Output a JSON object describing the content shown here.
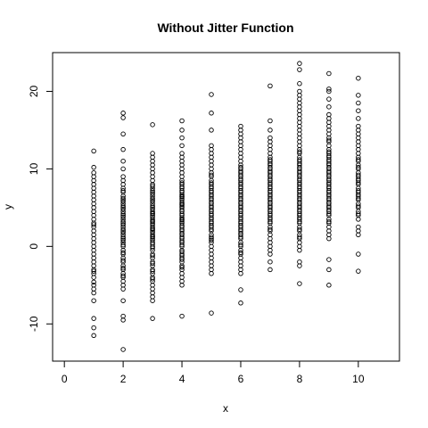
{
  "chart_data": {
    "type": "scatter",
    "title": "Without Jitter Function",
    "xlabel": "x",
    "ylabel": "y",
    "xlim": [
      -0.4,
      11.4
    ],
    "ylim": [
      -14.8,
      25
    ],
    "x_ticks": [
      0,
      2,
      4,
      6,
      8,
      10
    ],
    "y_ticks": [
      -10,
      0,
      10,
      20
    ],
    "x_tick_labels": [
      "0",
      "2",
      "4",
      "6",
      "8",
      "10"
    ],
    "y_tick_labels": [
      "-10",
      "0",
      "10",
      "20"
    ],
    "grid": false,
    "legend": "none",
    "marker": "open-circle",
    "series": [
      {
        "x": [
          1,
          1,
          1,
          1,
          1,
          1,
          1,
          1,
          1,
          1,
          1,
          1,
          1,
          1,
          1,
          1,
          1,
          1,
          1,
          1,
          1,
          1,
          1,
          1,
          1,
          1,
          1,
          1,
          1,
          1,
          1,
          1,
          1,
          1,
          1,
          1,
          1,
          1,
          1,
          1
        ],
        "y": [
          -11.5,
          -10.5,
          -9.3,
          -7,
          -6,
          -5.5,
          -5,
          -4.6,
          -4,
          -3.5,
          -3,
          -2.5,
          -2,
          -1.5,
          -1,
          -0.5,
          0,
          0.5,
          1,
          1.5,
          2,
          2.5,
          3,
          3.5,
          4,
          4.5,
          5,
          5.5,
          6,
          6.5,
          7,
          7.5,
          8,
          8.5,
          9,
          9.5,
          10.2,
          12.3,
          -3.2,
          2.8
        ]
      },
      {
        "x": [
          2,
          2,
          2,
          2,
          2,
          2,
          2,
          2,
          2,
          2,
          2,
          2,
          2,
          2,
          2,
          2,
          2,
          2,
          2,
          2,
          2,
          2,
          2,
          2,
          2,
          2,
          2,
          2,
          2,
          2,
          2,
          2,
          2,
          2,
          2,
          2,
          2,
          2,
          2,
          2,
          2,
          2,
          2,
          2,
          2,
          2,
          2,
          2,
          2,
          2,
          2,
          2,
          2,
          2,
          2,
          2,
          2,
          2
        ],
        "y": [
          -13.3,
          -9.5,
          -9,
          -7,
          -5.5,
          -5,
          -4.5,
          -4,
          -3.5,
          -3,
          -2.5,
          -2,
          -1.5,
          -1,
          -0.5,
          0,
          0.5,
          1,
          1.5,
          2,
          2.5,
          3,
          3.5,
          4,
          4.5,
          5,
          5.5,
          6,
          6.5,
          7,
          7.5,
          8,
          8.5,
          9,
          10,
          11,
          12.5,
          14.5,
          16.6,
          17.2,
          -0.8,
          0.2,
          1.2,
          2.2,
          3.2,
          4.2,
          5.2,
          6.2,
          7.2,
          -1.8,
          -2.8,
          -3.8,
          0.8,
          1.8,
          2.8,
          3.8,
          4.8,
          5.8
        ]
      },
      {
        "x": [
          3,
          3,
          3,
          3,
          3,
          3,
          3,
          3,
          3,
          3,
          3,
          3,
          3,
          3,
          3,
          3,
          3,
          3,
          3,
          3,
          3,
          3,
          3,
          3,
          3,
          3,
          3,
          3,
          3,
          3,
          3,
          3,
          3,
          3,
          3,
          3,
          3,
          3,
          3,
          3,
          3,
          3,
          3,
          3,
          3,
          3,
          3,
          3,
          3,
          3,
          3,
          3,
          3,
          3,
          3,
          3,
          3,
          3,
          3,
          3,
          3,
          3,
          3,
          3,
          3,
          3
        ],
        "y": [
          -9.3,
          -7,
          -6.5,
          -6,
          -5.5,
          -5,
          -4.5,
          -4,
          -3.5,
          -3,
          -2.5,
          -2,
          -1.5,
          -1,
          -0.5,
          0,
          0.5,
          1,
          1.5,
          2,
          2.5,
          3,
          3.5,
          4,
          4.5,
          5,
          5.5,
          6,
          6.5,
          7,
          7.5,
          8,
          8.5,
          9,
          9.5,
          10,
          10.5,
          11,
          11.5,
          12,
          15.7,
          -0.2,
          0.8,
          1.8,
          2.8,
          3.8,
          4.8,
          5.8,
          6.8,
          7.8,
          -1.2,
          -2.2,
          -3.2,
          -4.2,
          1.2,
          2.2,
          3.2,
          4.2,
          5.2,
          6.2,
          7.2,
          0.3,
          1.3,
          2.3,
          3.3,
          4.3
        ]
      },
      {
        "x": [
          4,
          4,
          4,
          4,
          4,
          4,
          4,
          4,
          4,
          4,
          4,
          4,
          4,
          4,
          4,
          4,
          4,
          4,
          4,
          4,
          4,
          4,
          4,
          4,
          4,
          4,
          4,
          4,
          4,
          4,
          4,
          4,
          4,
          4,
          4,
          4,
          4,
          4,
          4,
          4,
          4,
          4,
          4,
          4,
          4,
          4,
          4,
          4,
          4,
          4,
          4,
          4,
          4,
          4,
          4,
          4,
          4,
          4,
          4,
          4,
          4,
          4,
          4,
          4
        ],
        "y": [
          -9,
          -5,
          -4.5,
          -4,
          -3.5,
          -3,
          -2.5,
          -2,
          -1.5,
          -1,
          -0.5,
          0,
          0.5,
          1,
          1.5,
          2,
          2.5,
          3,
          3.5,
          4,
          4.5,
          5,
          5.5,
          6,
          6.5,
          7,
          7.5,
          8,
          8.5,
          9,
          9.5,
          10,
          10.5,
          11,
          11.5,
          12,
          13,
          14,
          15,
          16.2,
          0.2,
          1.2,
          2.2,
          3.2,
          4.2,
          5.2,
          6.2,
          7.2,
          8.2,
          -0.7,
          -1.7,
          -2.7,
          0.7,
          1.7,
          2.7,
          3.7,
          4.7,
          5.7,
          6.7,
          7.7,
          -1.2,
          3.4,
          5.4,
          6.4
        ]
      },
      {
        "x": [
          5,
          5,
          5,
          5,
          5,
          5,
          5,
          5,
          5,
          5,
          5,
          5,
          5,
          5,
          5,
          5,
          5,
          5,
          5,
          5,
          5,
          5,
          5,
          5,
          5,
          5,
          5,
          5,
          5,
          5,
          5,
          5,
          5,
          5,
          5,
          5,
          5,
          5,
          5,
          5,
          5,
          5,
          5,
          5,
          5,
          5,
          5,
          5,
          5,
          5,
          5,
          5,
          5,
          5
        ],
        "y": [
          -8.6,
          -3.5,
          -3,
          -2.5,
          -1.5,
          -0.5,
          0,
          0.5,
          1,
          1.5,
          2,
          2.5,
          3,
          3.5,
          4,
          4.5,
          5,
          5.5,
          6,
          6.5,
          7,
          7.5,
          8,
          8.5,
          9,
          9.5,
          10,
          10.5,
          11,
          11.5,
          12,
          12.5,
          13,
          15,
          17.2,
          19.6,
          1.2,
          2.2,
          3.2,
          4.2,
          5.2,
          6.2,
          7.2,
          8.2,
          9.2,
          2.7,
          3.7,
          4.7,
          5.7,
          6.7,
          7.7,
          -2,
          -1,
          0.8
        ]
      },
      {
        "x": [
          6,
          6,
          6,
          6,
          6,
          6,
          6,
          6,
          6,
          6,
          6,
          6,
          6,
          6,
          6,
          6,
          6,
          6,
          6,
          6,
          6,
          6,
          6,
          6,
          6,
          6,
          6,
          6,
          6,
          6,
          6,
          6,
          6,
          6,
          6,
          6,
          6,
          6,
          6,
          6,
          6,
          6,
          6,
          6,
          6,
          6,
          6,
          6,
          6,
          6,
          6,
          6,
          6,
          6,
          6,
          6,
          6,
          6,
          6,
          6,
          6,
          6
        ],
        "y": [
          -7.3,
          -5.6,
          -3.5,
          -3,
          -2.5,
          -2,
          -1.5,
          -1,
          -0.5,
          0,
          0.5,
          1,
          1.5,
          2,
          2.5,
          3,
          3.5,
          4,
          4.5,
          5,
          5.5,
          6,
          6.5,
          7,
          7.5,
          8,
          8.5,
          9,
          9.5,
          10,
          10.5,
          11,
          11.5,
          12,
          12.5,
          13,
          13.5,
          14,
          14.5,
          15,
          15.5,
          1.2,
          2.2,
          3.2,
          4.2,
          5.2,
          6.2,
          7.2,
          8.2,
          9.2,
          10.2,
          -0.8,
          0.2,
          1.7,
          2.7,
          3.7,
          4.7,
          5.7,
          6.7,
          7.7,
          8.7,
          9.7
        ]
      },
      {
        "x": [
          7,
          7,
          7,
          7,
          7,
          7,
          7,
          7,
          7,
          7,
          7,
          7,
          7,
          7,
          7,
          7,
          7,
          7,
          7,
          7,
          7,
          7,
          7,
          7,
          7,
          7,
          7,
          7,
          7,
          7,
          7,
          7,
          7,
          7,
          7,
          7,
          7,
          7,
          7,
          7,
          7,
          7,
          7,
          7,
          7,
          7,
          7,
          7,
          7,
          7,
          7,
          7,
          7,
          7
        ],
        "y": [
          -3,
          -2,
          -1,
          -0.5,
          0,
          0.5,
          1,
          1.5,
          2,
          2.5,
          3,
          3.5,
          4,
          4.5,
          5,
          5.5,
          6,
          6.5,
          7,
          7.5,
          8,
          8.5,
          9,
          9.5,
          10,
          10.5,
          11,
          11.5,
          12,
          12.5,
          13,
          13.5,
          14,
          15,
          16.2,
          20.7,
          2.2,
          3.2,
          4.2,
          5.2,
          6.2,
          7.2,
          8.2,
          9.2,
          10.2,
          11.2,
          3.7,
          4.7,
          5.7,
          6.7,
          7.7,
          8.7,
          9.7,
          10.7
        ]
      },
      {
        "x": [
          8,
          8,
          8,
          8,
          8,
          8,
          8,
          8,
          8,
          8,
          8,
          8,
          8,
          8,
          8,
          8,
          8,
          8,
          8,
          8,
          8,
          8,
          8,
          8,
          8,
          8,
          8,
          8,
          8,
          8,
          8,
          8,
          8,
          8,
          8,
          8,
          8,
          8,
          8,
          8,
          8,
          8,
          8,
          8,
          8,
          8,
          8,
          8,
          8,
          8,
          8,
          8,
          8,
          8,
          8,
          8,
          8,
          8,
          8,
          8,
          8,
          8,
          8,
          8,
          8,
          8,
          8,
          8
        ],
        "y": [
          -4.8,
          -2.5,
          -2,
          -0.5,
          0,
          0.5,
          1,
          1.5,
          2,
          2.5,
          3,
          3.5,
          4,
          4.5,
          5,
          5.5,
          6,
          6.5,
          7,
          7.5,
          8,
          8.5,
          9,
          9.5,
          10,
          10.5,
          11,
          11.5,
          12,
          12.5,
          13,
          13.5,
          14,
          14.5,
          15,
          15.5,
          16,
          16.5,
          17,
          17.5,
          18,
          18.5,
          19,
          19.5,
          20,
          21,
          22.8,
          23.6,
          1.2,
          2.2,
          3.2,
          4.2,
          5.2,
          6.2,
          7.2,
          8.2,
          9.2,
          10.2,
          11.2,
          12.2,
          3.7,
          4.7,
          5.7,
          6.7,
          7.7,
          8.7,
          9.7,
          10.7
        ]
      },
      {
        "x": [
          9,
          9,
          9,
          9,
          9,
          9,
          9,
          9,
          9,
          9,
          9,
          9,
          9,
          9,
          9,
          9,
          9,
          9,
          9,
          9,
          9,
          9,
          9,
          9,
          9,
          9,
          9,
          9,
          9,
          9,
          9,
          9,
          9,
          9,
          9,
          9,
          9,
          9,
          9,
          9,
          9,
          9,
          9,
          9,
          9,
          9,
          9,
          9,
          9,
          9,
          9,
          9,
          9,
          9,
          9,
          9,
          9,
          9,
          9,
          9
        ],
        "y": [
          -5,
          -3,
          -1.7,
          1,
          1.5,
          2,
          2.5,
          3,
          3.5,
          4,
          4.5,
          5,
          5.5,
          6,
          6.5,
          7,
          7.5,
          8,
          8.5,
          9,
          9.5,
          10,
          10.5,
          11,
          11.5,
          12,
          12.5,
          13,
          13.5,
          14,
          14.5,
          15,
          15.5,
          16,
          16.5,
          17,
          18,
          19,
          20,
          20.3,
          22.3,
          3.2,
          4.2,
          5.2,
          6.2,
          7.2,
          8.2,
          9.2,
          10.2,
          11.2,
          12.2,
          4.7,
          5.7,
          6.7,
          7.7,
          8.7,
          9.7,
          10.7,
          11.7,
          13.7
        ]
      },
      {
        "x": [
          10,
          10,
          10,
          10,
          10,
          10,
          10,
          10,
          10,
          10,
          10,
          10,
          10,
          10,
          10,
          10,
          10,
          10,
          10,
          10,
          10,
          10,
          10,
          10,
          10,
          10,
          10,
          10,
          10,
          10,
          10,
          10,
          10,
          10,
          10,
          10,
          10,
          10,
          10,
          10,
          10,
          10,
          10,
          10,
          10
        ],
        "y": [
          -3.2,
          -1,
          1.5,
          2,
          2.5,
          3.5,
          4,
          4.5,
          5,
          5.5,
          6,
          6.5,
          7,
          7.5,
          8,
          8.5,
          9,
          9.5,
          10,
          10.5,
          11,
          11.5,
          12,
          12.5,
          13,
          13.5,
          14,
          14.5,
          15,
          15.5,
          16.5,
          17.5,
          18.5,
          19.5,
          21.7,
          4.2,
          5.2,
          6.2,
          7.2,
          8.2,
          9.2,
          10.2,
          11.2,
          6.7,
          8.7
        ]
      }
    ]
  }
}
